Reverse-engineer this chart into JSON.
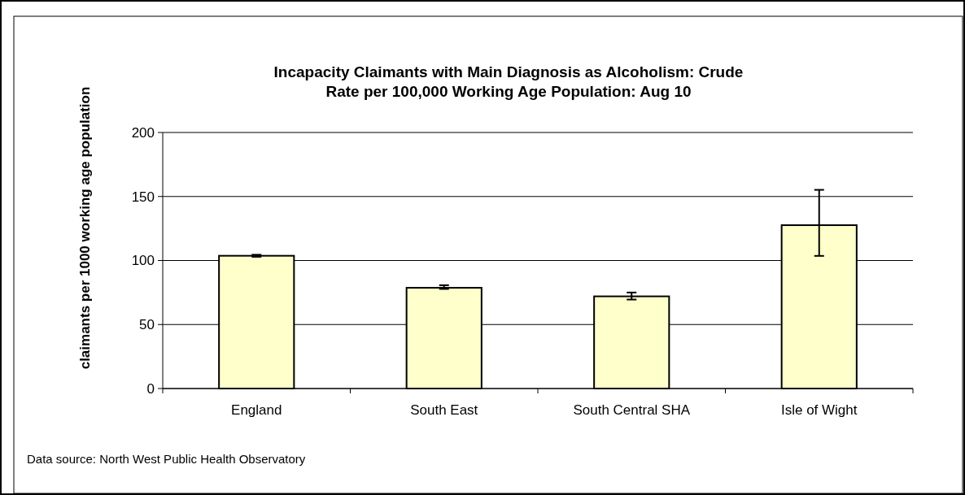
{
  "chart_data": {
    "type": "bar",
    "title": "Incapacity Claimants with Main Diagnosis as Alcoholism:  Crude Rate per 100,000 Working Age Population: Aug 10",
    "ylabel": "claimants per 1000 working age population",
    "categories": [
      "England",
      "South East",
      "South Central SHA",
      "Isle of Wight"
    ],
    "values": [
      103.7,
      78.7,
      72,
      127.6
    ],
    "errors": [
      [
        102.9,
        104.5
      ],
      [
        77.8,
        80.7
      ],
      [
        69.5,
        75
      ],
      [
        103.6,
        155.2
      ]
    ],
    "color": "#ffffcc",
    "ylim": [
      0,
      200
    ],
    "yticks": [
      0,
      50,
      100,
      150,
      200
    ],
    "grid": "y",
    "annotations": [
      "Data source: North West Public Health Observatory"
    ]
  }
}
